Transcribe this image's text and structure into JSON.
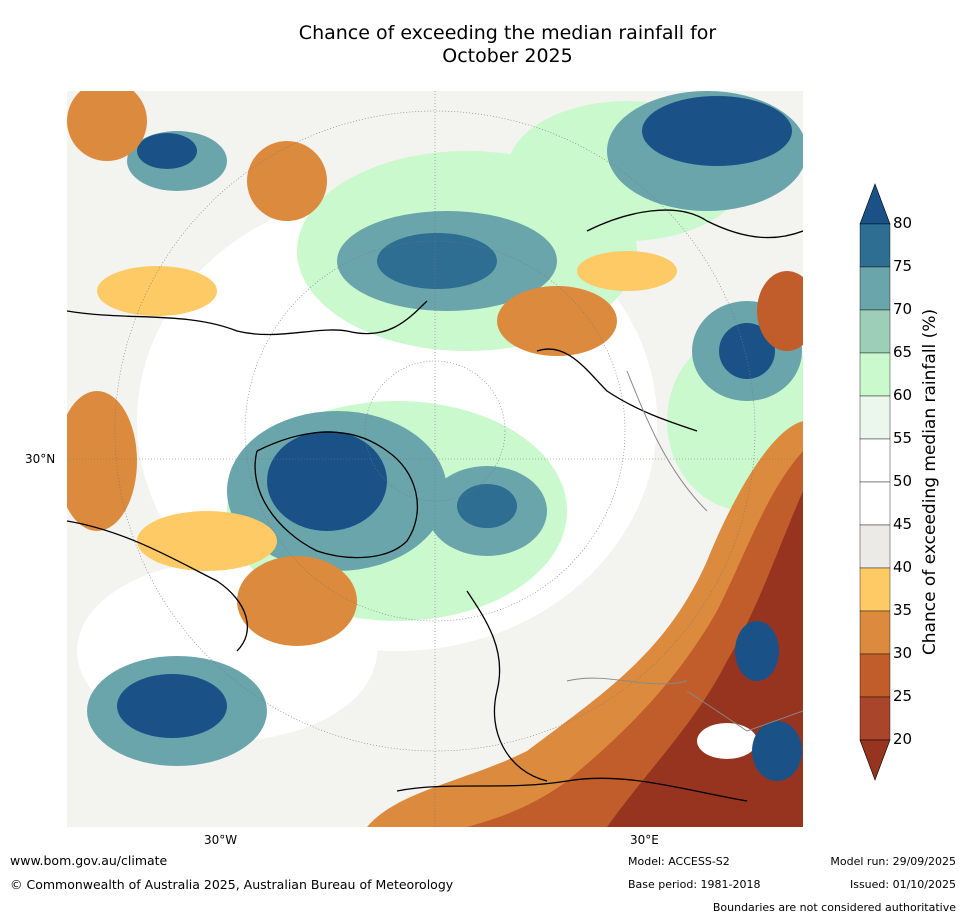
{
  "title_line1": "Chance of exceeding the median rainfall for",
  "title_line2": "October 2025",
  "axis_labels": {
    "lat_30n": "30°N",
    "lon_30w": "30°W",
    "lon_30e": "30°E"
  },
  "colorbar": {
    "label": "Chance of exceeding median rainfall (%)",
    "ticks": [
      "80",
      "75",
      "70",
      "65",
      "60",
      "55",
      "50",
      "45",
      "40",
      "35",
      "30",
      "25",
      "20"
    ],
    "colors": {
      "over80": "#1a5288",
      "75_80": "#2d6e92",
      "70_75": "#6aa5ab",
      "65_70": "#9dcfb8",
      "60_65": "#caf9cd",
      "55_60": "#ebf6ec",
      "50_55": "#ffffff",
      "45_50": "#ffffff",
      "40_45": "#ebeae6",
      "35_40": "#fdca65",
      "30_35": "#dc8a3d",
      "25_30": "#c15d2b",
      "20_25": "#a8452a",
      "under20": "#96341f"
    }
  },
  "footer": {
    "website": "www.bom.gov.au/climate",
    "copyright": "© Commonwealth of Australia 2025, Australian Bureau of Meteorology",
    "model": "Model: ACCESS-S2",
    "base_period": "Base period: 1981-2018",
    "model_run": "Model run: 29/09/2025",
    "issued": "Issued: 01/10/2025",
    "disclaimer": "Boundaries are not considered authoritative"
  }
}
